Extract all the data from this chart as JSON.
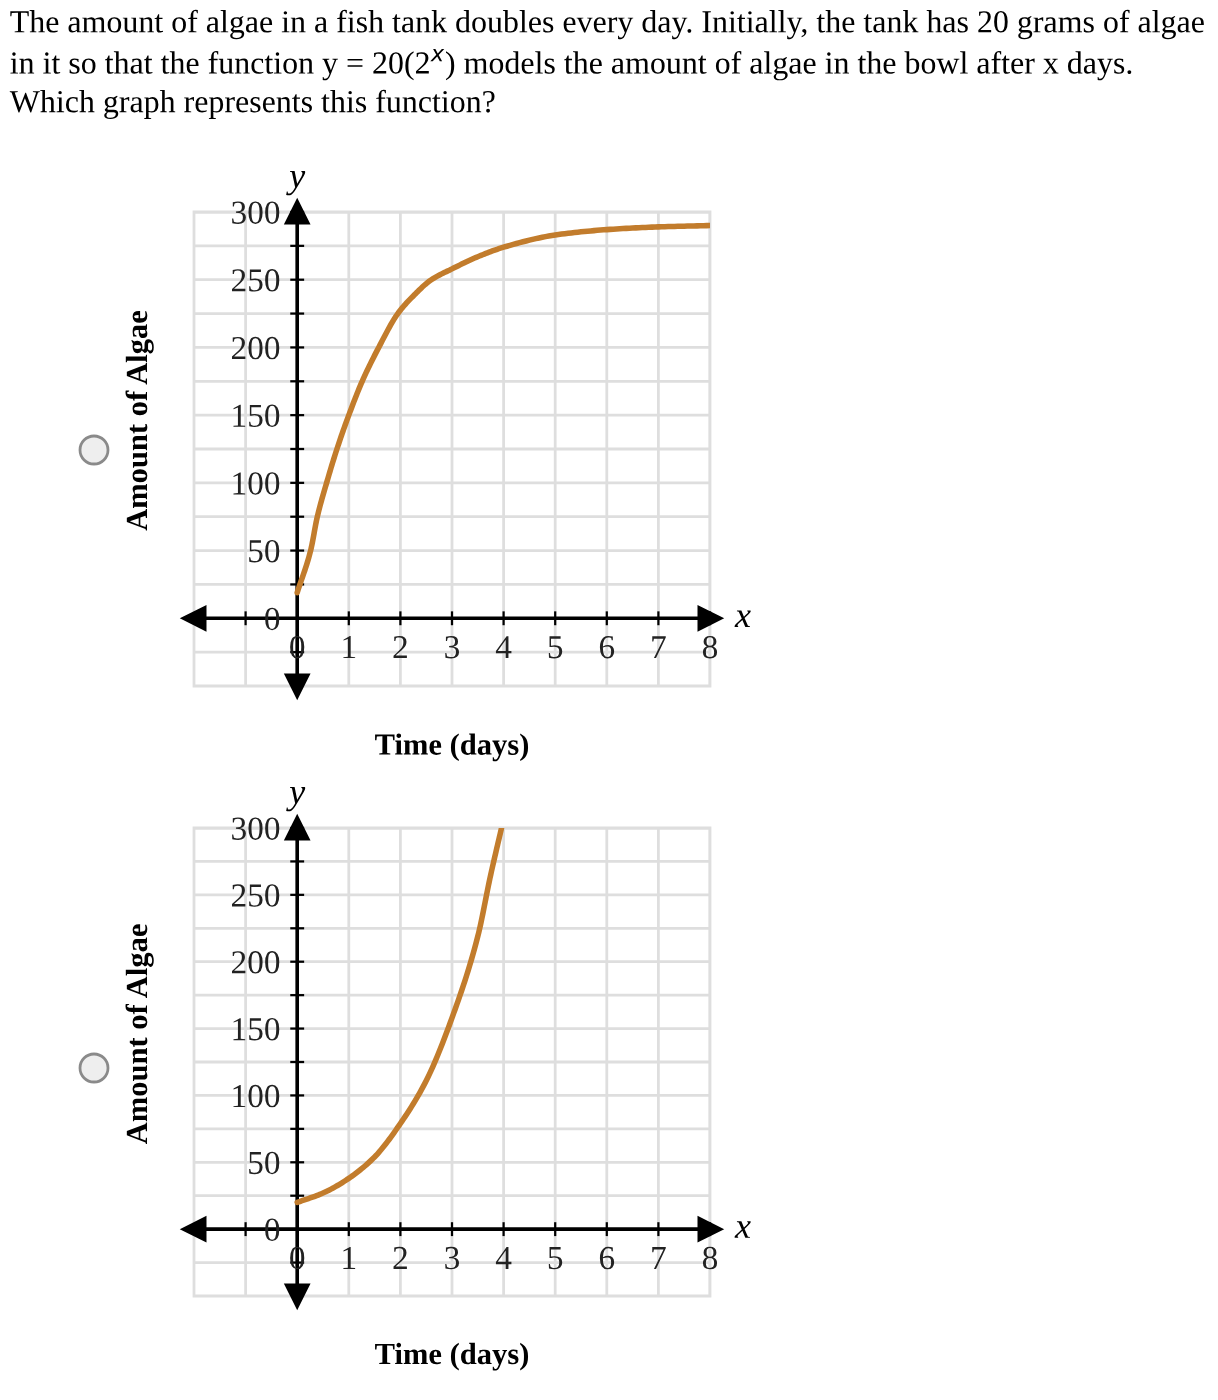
{
  "chart_data": [
    {
      "type": "line",
      "title": "The amount of algae in a fish tank doubles every day. Initially, the tank has 20 grams of algae in it so that the function y = 20(2$^{x}$) models the amount of algae in the bowl after x days. Which graph represents this function?",
      "xlabel": "Time (days)",
      "ylabel": "Amount of Algae",
      "annotations": [
        "y",
        "x"
      ],
      "series": [
        {
          "color": "#c27c2c",
          "x": [
            0,
            0.26,
            0.39,
            0.57,
            0.77,
            1,
            1.26,
            1.58,
            1.95,
            2.25,
            2.6,
            3,
            3.5,
            4,
            5,
            6,
            7,
            8
          ],
          "values": [
            19,
            50,
            75,
            100,
            125,
            150,
            175,
            200,
            225,
            238,
            250,
            258,
            267,
            274,
            283,
            287,
            289,
            290
          ]
        }
      ],
      "xlim": [
        -2,
        8
      ],
      "ylim": [
        -50,
        300
      ],
      "xticks": [
        {
          "value": -1,
          "label": null
        },
        0,
        1,
        2,
        3,
        4,
        5,
        6,
        7,
        8
      ],
      "yticks": [
        {
          "value": -25,
          "label": null
        },
        0,
        {
          "value": 25,
          "label": null
        },
        50,
        {
          "value": 75,
          "label": null
        },
        100,
        {
          "value": 125,
          "label": null
        },
        150,
        {
          "value": 175,
          "label": null
        },
        200,
        {
          "value": 225,
          "label": null
        },
        250,
        {
          "value": 275,
          "label": null
        },
        300
      ],
      "grid": true
    },
    {
      "type": "line",
      "xlabel": "Time (days)",
      "ylabel": "Amount of Algae",
      "annotations": [
        "y",
        "x"
      ],
      "series": [
        {
          "color": "#c27c2c",
          "x": [
            0,
            0.5,
            1,
            1.5,
            2,
            2.5,
            3,
            3.5,
            3.75,
            3.96
          ],
          "values": [
            20,
            27,
            38,
            54,
            79,
            111,
            158,
            219,
            265,
            300
          ]
        }
      ],
      "xlim": [
        -2,
        8
      ],
      "ylim": [
        -50,
        300
      ],
      "xticks": [
        {
          "value": -1,
          "label": null
        },
        0,
        1,
        2,
        3,
        4,
        5,
        6,
        7,
        8
      ],
      "yticks": [
        {
          "value": -25,
          "label": null
        },
        0,
        {
          "value": 25,
          "label": null
        },
        50,
        {
          "value": 75,
          "label": null
        },
        100,
        {
          "value": 125,
          "label": null
        },
        150,
        {
          "value": 175,
          "label": null
        },
        200,
        {
          "value": 225,
          "label": null
        },
        250,
        {
          "value": 275,
          "label": null
        },
        300
      ],
      "grid": true
    }
  ]
}
